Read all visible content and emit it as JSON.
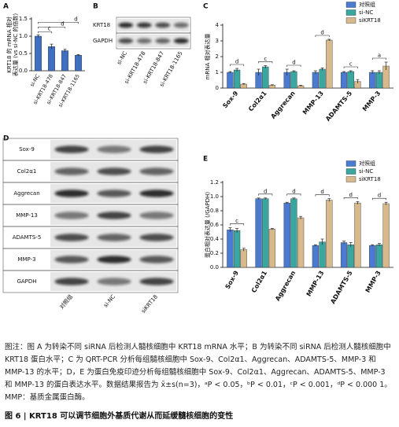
{
  "chart_data": [
    {
      "type": "bar",
      "panel_label": "A",
      "y_label": [
        "KRT18 的 mRNA 相对",
        "表达量 (vs si-NC 的倍数)"
      ],
      "categories": [
        "si-NC",
        "si-KRT18-478",
        "si-KRT18-847",
        "si-KRT18-1165"
      ],
      "values": [
        1.0,
        0.7,
        0.58,
        0.45
      ],
      "errors": [
        0.04,
        0.07,
        0.04,
        0.02
      ],
      "color": "#3e6fc1",
      "ylim": [
        0,
        1.5
      ],
      "yticks": [
        {
          "value": 0,
          "label": "0.0"
        },
        {
          "value": 0.5,
          "label": "0.5"
        },
        {
          "value": 1,
          "label": "1.0"
        },
        {
          "value": 1.5,
          "label": "1.5"
        }
      ],
      "significance": [
        null,
        "c",
        "d",
        "d"
      ]
    },
    {
      "type": "grouped_bar",
      "panel_label": "C",
      "y_label": [
        "mRNA 相对表达量"
      ],
      "categories": [
        "Sox-9",
        "Col2α1",
        "Aggrecan",
        "MMP-13",
        "ADAMTS-5",
        "MMP-3"
      ],
      "series": [
        {
          "name": "对照组",
          "color": "#4a7bd0",
          "values": [
            1.0,
            1.0,
            1.0,
            1.0,
            1.0,
            1.0
          ],
          "errors": [
            0.05,
            0.2,
            0.2,
            0.1,
            0.05,
            0.1
          ]
        },
        {
          "name": "si-NC",
          "color": "#3aa6a0",
          "values": [
            1.15,
            1.35,
            1.05,
            1.2,
            1.05,
            1.0
          ],
          "errors": [
            0.1,
            0.08,
            0.05,
            0.08,
            0.05,
            0.1
          ]
        },
        {
          "name": "siKRT18",
          "color": "#d8b98b",
          "values": [
            0.25,
            0.18,
            0.15,
            3.05,
            0.42,
            1.4
          ],
          "errors": [
            0.04,
            0.03,
            0.03,
            0.05,
            0.12,
            0.25
          ]
        }
      ],
      "ylim": [
        0,
        4
      ],
      "yticks": [
        0,
        1,
        2,
        3,
        4
      ],
      "significance": [
        "d",
        "c",
        "d",
        "d",
        "c",
        "a"
      ]
    },
    {
      "type": "grouped_bar",
      "panel_label": "E",
      "y_label": [
        "蛋白相对表达量 (/GAPDH)"
      ],
      "categories": [
        "Sox-9",
        "Col2α1",
        "Aggrecan",
        "MMP-13",
        "ADAMTS-5",
        "MMP-3"
      ],
      "series": [
        {
          "name": "对照组",
          "color": "#4a7bd0",
          "values": [
            0.53,
            0.97,
            0.91,
            0.31,
            0.35,
            0.31
          ],
          "errors": [
            0.03,
            0.01,
            0.01,
            0.01,
            0.02,
            0.01
          ]
        },
        {
          "name": "si-NC",
          "color": "#3aa6a0",
          "values": [
            0.52,
            0.97,
            0.97,
            0.36,
            0.32,
            0.32
          ],
          "errors": [
            0.03,
            0.01,
            0.01,
            0.04,
            0.03,
            0.02
          ]
        },
        {
          "name": "siKRT18",
          "color": "#d8b98b",
          "values": [
            0.25,
            0.54,
            0.7,
            0.95,
            0.91,
            0.9
          ],
          "errors": [
            0.02,
            0.01,
            0.02,
            0.02,
            0.02,
            0.02
          ]
        }
      ],
      "ylim": [
        0,
        1.2
      ],
      "yticks": [
        {
          "value": 0,
          "label": "0.0"
        },
        {
          "value": 0.2,
          "label": "0.2"
        },
        {
          "value": 0.4,
          "label": "0.4"
        },
        {
          "value": 0.6,
          "label": "0.6"
        },
        {
          "value": 0.8,
          "label": "0.8"
        },
        {
          "value": 1.0,
          "label": "1.0"
        },
        {
          "value": 1.2,
          "label": "1.2"
        }
      ],
      "significance": [
        "c",
        "d",
        "d",
        "d",
        "d",
        "d"
      ]
    }
  ],
  "blot_b": {
    "panel_label": "B",
    "rows": [
      "KRT18",
      "GAPDH"
    ],
    "lanes": [
      "si-NC",
      "si-KRT18-478",
      "si-KRT18-847",
      "si-KRT18-1165"
    ]
  },
  "blot_d": {
    "panel_label": "D",
    "rows": [
      "Sox-9",
      "Col2α1",
      "Aggrecan",
      "MMP-13",
      "ADAMTS-5",
      "MMP-3",
      "GAPDH"
    ],
    "lanes": [
      "对照组",
      "si-NC",
      "siKRT18"
    ]
  },
  "caption": {
    "body": "图注：图 A 为转染不同 siRNA 后检测人髓核细胞中 KRT18 mRNA 水平；B 为转染不同 siRNA 后检测人髓核细胞中 KRT18 蛋白水平；C 为 QRT-PCR 分析每组髓核细胞中 Sox-9、Col2α1、Aggrecan、ADAMTS-5、MMP-3 和 MMP-13 的水平；D，E 为蛋白免疫印迹分析每组髓核细胞中 Sox-9、Col2α1、Aggrecan、ADAMTS-5、MMP-3 和 MMP-13 的蛋白表达水平。数据结果报告为 x̄±s(n=3)，ᵃP < 0.05，ᵇP < 0.01，ᶜP < 0.001，ᵈP < 0.000 1。MMP：基质金属蛋白酶。",
    "title": "图 6 | KRT18 可以调节细胞外基质代谢从而延缓髓核细胞的变性"
  }
}
